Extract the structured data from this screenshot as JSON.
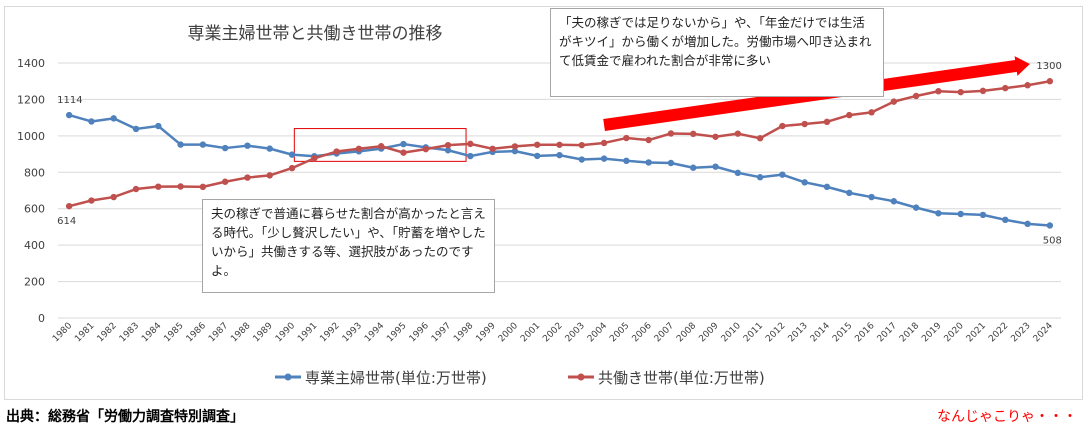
{
  "chart_data": {
    "type": "line",
    "title": "専業主婦世帯と共働き世帯の推移",
    "xlabel": "",
    "ylabel": "",
    "ylim": [
      0,
      1400
    ],
    "yticks": [
      0,
      200,
      400,
      600,
      800,
      1000,
      1200,
      1400
    ],
    "grid": true,
    "legend_position": "bottom",
    "categories": [
      "1980",
      "1981",
      "1982",
      "1983",
      "1984",
      "1985",
      "1986",
      "1987",
      "1988",
      "1989",
      "1990",
      "1991",
      "1992",
      "1993",
      "1994",
      "1995",
      "1996",
      "1997",
      "1998",
      "1999",
      "2000",
      "2001",
      "2002",
      "2003",
      "2004",
      "2005",
      "2006",
      "2007",
      "2008",
      "2009",
      "2010",
      "2011",
      "2012",
      "2013",
      "2014",
      "2015",
      "2016",
      "2017",
      "2018",
      "2019",
      "2020",
      "2021",
      "2022",
      "2023",
      "2024"
    ],
    "series": [
      {
        "name": "専業主婦世帯(単位:万世帯)",
        "color": "#4f81bd",
        "values": [
          1114,
          1079,
          1096,
          1038,
          1054,
          952,
          952,
          933,
          946,
          930,
          897,
          888,
          903,
          915,
          930,
          955,
          937,
          921,
          889,
          912,
          916,
          890,
          894,
          870,
          875,
          863,
          854,
          851,
          825,
          831,
          797,
          773,
          787,
          745,
          720,
          687,
          664,
          641,
          606,
          575,
          571,
          566,
          539,
          517,
          508
        ],
        "labels": {
          "first": "1114",
          "last": "508"
        }
      },
      {
        "name": "共働き世帯(単位:万世帯)",
        "color": "#c0504d",
        "values": [
          614,
          645,
          664,
          708,
          721,
          722,
          720,
          748,
          771,
          783,
          823,
          877,
          914,
          929,
          943,
          908,
          927,
          949,
          956,
          929,
          942,
          951,
          951,
          949,
          961,
          988,
          977,
          1013,
          1011,
          995,
          1012,
          987,
          1054,
          1065,
          1077,
          1114,
          1129,
          1188,
          1219,
          1245,
          1240,
          1247,
          1262,
          1278,
          1300
        ],
        "labels": {
          "first": "614",
          "last": "1300"
        }
      }
    ],
    "annotations": {
      "highlight_box_years": [
        "1991",
        "1997"
      ],
      "arrow_years": [
        "2004",
        "2024"
      ],
      "callout_top": "「夫の稼ぎでは足りないから」や、「年金だけでは生活がキツイ」から働くが増加した。労働市場へ叩き込まれて低賃金で雇われた割合が非常に多い",
      "callout_left": "夫の稼ぎで普通に暮らせた割合が高かったと言える時代。「少し贅沢したい」や、「貯蓄を増やしたいから」共働きする等、選択肢があったのですよ。"
    }
  },
  "footer": {
    "source": "出典：総務省「労働力調査特別調査」",
    "signature": "なんじゃこりゃ・・・"
  },
  "colors": {
    "highlight_box": "#e00000",
    "arrow": "#ff0000",
    "grid": "#d9d9d9"
  }
}
